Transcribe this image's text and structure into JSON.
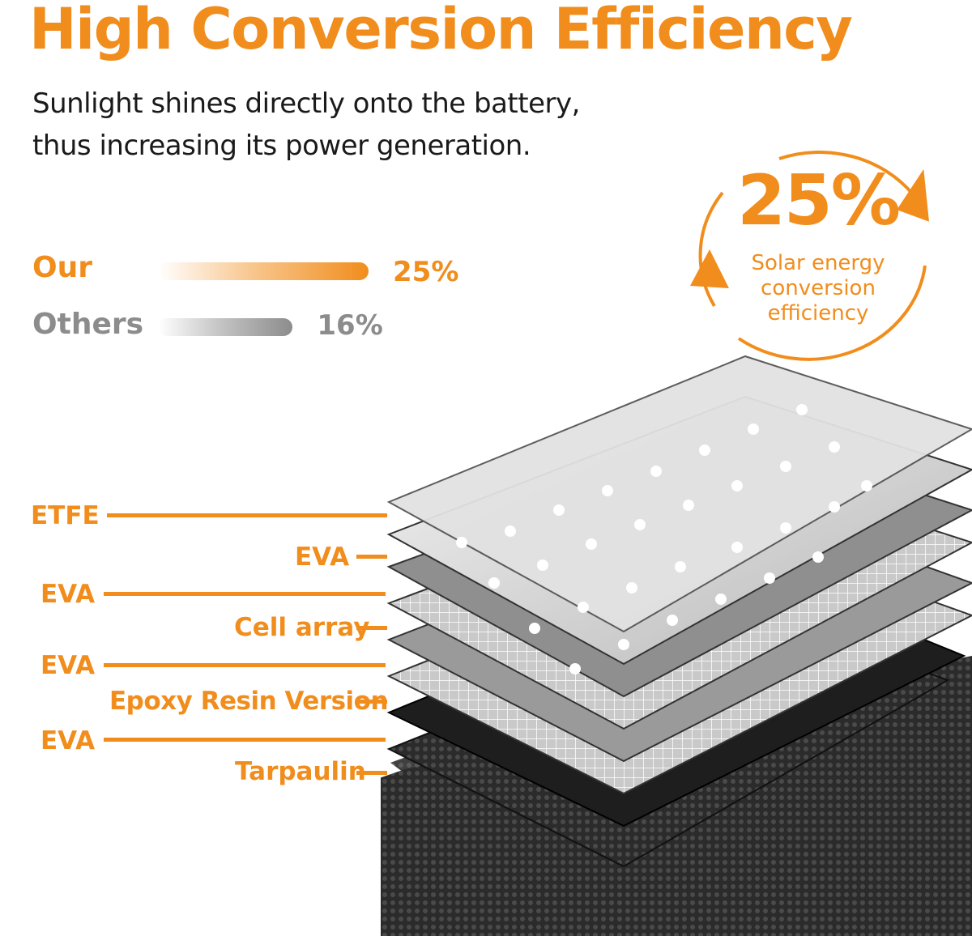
{
  "header": {
    "title": "High Conversion Efficiency",
    "subtitle_lines": [
      "Sunlight shines directly onto the battery,",
      "thus increasing its power generation."
    ]
  },
  "comparison": {
    "items": [
      {
        "label": "Our",
        "value_text": "25%",
        "value": 25,
        "color": "#f18d1c"
      },
      {
        "label": "Others",
        "value_text": "16%",
        "value": 16,
        "color": "#8c8c8c"
      }
    ]
  },
  "badge": {
    "value": "25%",
    "lines": [
      "Solar energy",
      "conversion",
      "efficiency"
    ],
    "icon": "circular-arrows-icon"
  },
  "layers": {
    "labels": [
      "ETFE",
      "EVA",
      "EVA",
      "Cell array",
      "EVA",
      "Epoxy Resin Version",
      "EVA",
      "Tarpaulin"
    ]
  },
  "colors": {
    "accent": "#f18d1c",
    "text": "#1a1a1a",
    "muted": "#8c8c8c"
  }
}
